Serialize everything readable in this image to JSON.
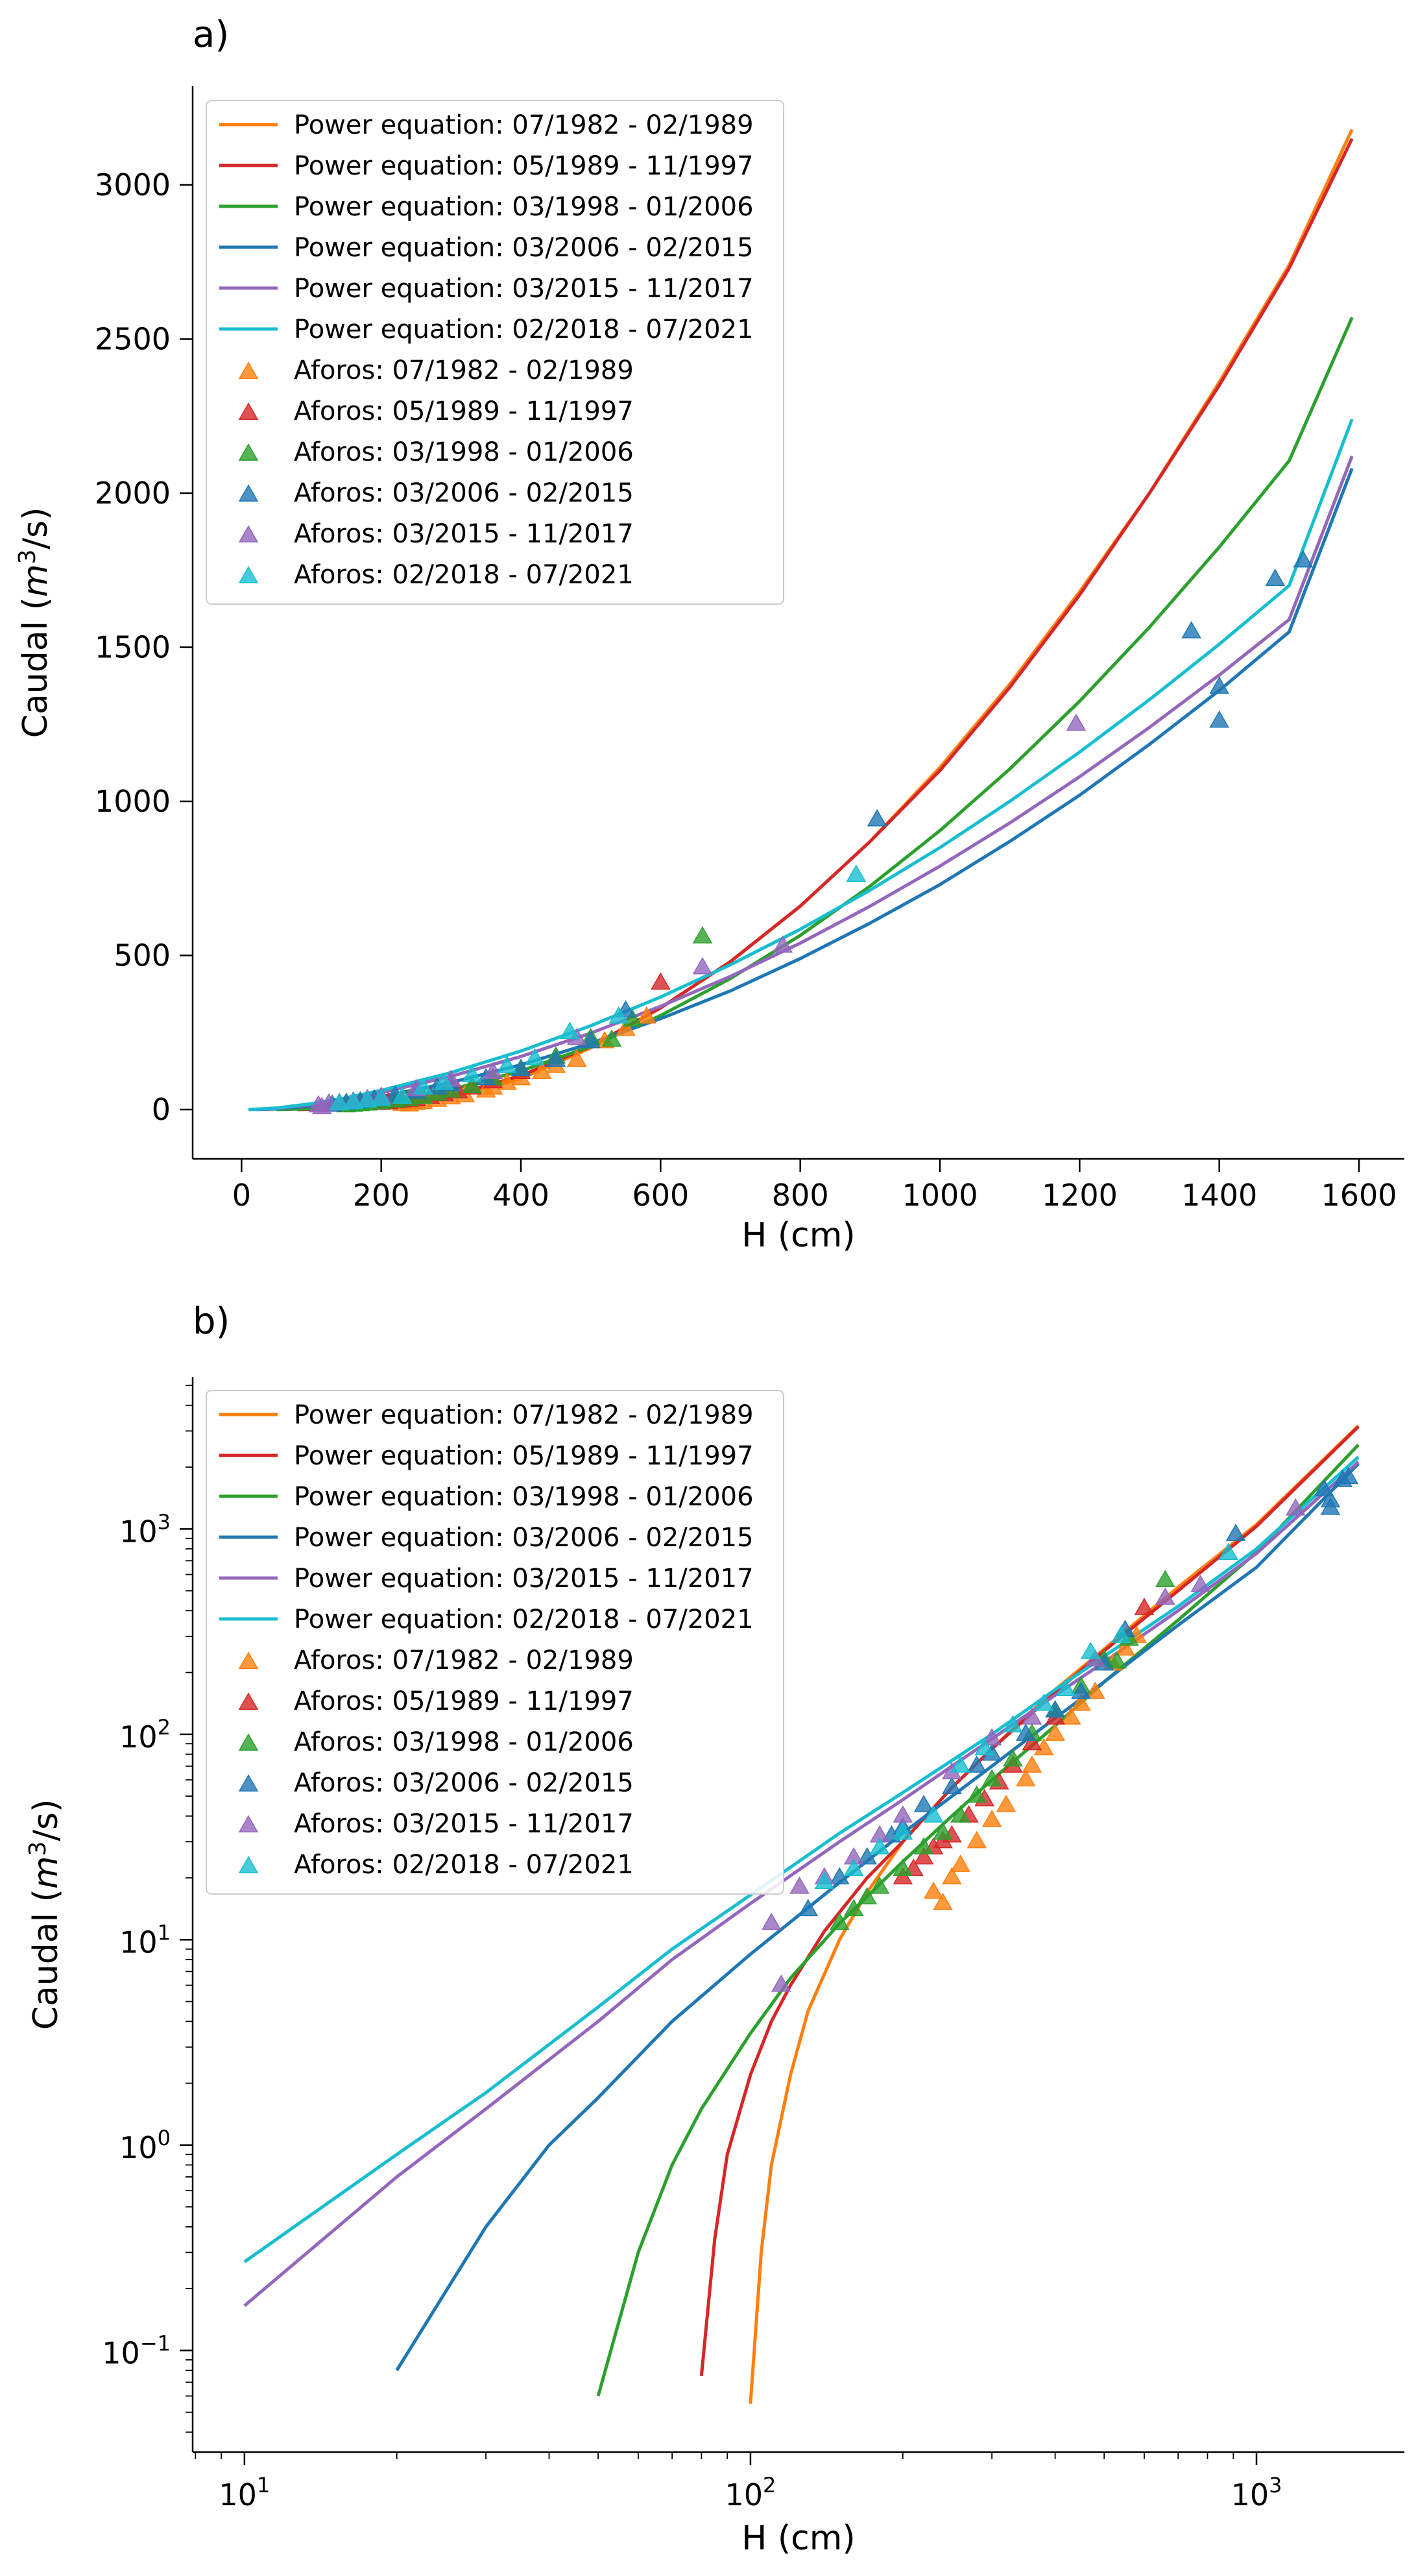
{
  "chart_data": [
    {
      "type": "line",
      "panel_label": "a)",
      "xlabel": "H (cm)",
      "ylabel": "Caudal (m3/s)",
      "ylabel_parts": {
        "base": "Caudal (",
        "var": "m",
        "sup": "3",
        "unit": "/s)"
      },
      "xscale": "linear",
      "yscale": "linear",
      "xlim": [
        -70,
        1665
      ],
      "ylim": [
        -160,
        3320
      ],
      "xticks": [
        0,
        200,
        400,
        600,
        800,
        1000,
        1200,
        1400,
        1600
      ],
      "xtick_labels": [
        "0",
        "200",
        "400",
        "600",
        "800",
        "1000",
        "1200",
        "1400",
        "1600"
      ],
      "yticks": [
        0,
        500,
        1000,
        1500,
        2000,
        2500,
        3000
      ],
      "ytick_labels": [
        "0",
        "500",
        "1000",
        "1500",
        "2000",
        "2500",
        "3000"
      ],
      "grid": false,
      "legend_position": "top-left",
      "series": [
        {
          "name": "Power equation: 07/1982 - 02/1989",
          "color": "#ff7f0e",
          "x": [
            100,
            150,
            200,
            250,
            300,
            400,
            500,
            600,
            700,
            800,
            900,
            1000,
            1100,
            1200,
            1300,
            1400,
            1500,
            1590
          ],
          "y": [
            0,
            2,
            8,
            20,
            40,
            100,
            200,
            330,
            480,
            660,
            870,
            1110,
            1380,
            1680,
            2000,
            2360,
            2740,
            3180
          ]
        },
        {
          "name": "Power equation: 05/1989 - 11/1997",
          "color": "#d62728",
          "x": [
            80,
            150,
            200,
            250,
            300,
            400,
            500,
            600,
            700,
            800,
            900,
            1000,
            1100,
            1200,
            1300,
            1400,
            1500,
            1590
          ],
          "y": [
            0,
            4,
            12,
            25,
            45,
            110,
            205,
            330,
            480,
            660,
            870,
            1100,
            1370,
            1670,
            2000,
            2350,
            2730,
            3150
          ]
        },
        {
          "name": "Power equation: 03/1998 - 01/2006",
          "color": "#2ca02c",
          "x": [
            50,
            100,
            150,
            200,
            300,
            400,
            500,
            600,
            700,
            800,
            900,
            1000,
            1100,
            1200,
            1300,
            1400,
            1500,
            1590
          ],
          "y": [
            0,
            3,
            12,
            25,
            65,
            125,
            205,
            305,
            425,
            565,
            725,
            905,
            1105,
            1325,
            1565,
            1825,
            2105,
            2570
          ]
        },
        {
          "name": "Power equation: 03/2006 - 02/2015",
          "color": "#1f77b4",
          "x": [
            20,
            50,
            100,
            150,
            200,
            300,
            400,
            500,
            600,
            700,
            800,
            900,
            1000,
            1100,
            1200,
            1300,
            1400,
            1500,
            1590
          ],
          "y": [
            0,
            2,
            11,
            25,
            42,
            88,
            145,
            215,
            295,
            385,
            490,
            605,
            730,
            870,
            1020,
            1185,
            1360,
            1550,
            2080
          ]
        },
        {
          "name": "Power equation: 03/2015 - 11/2017",
          "color": "#9467bd",
          "x": [
            10,
            50,
            100,
            150,
            200,
            300,
            400,
            500,
            600,
            700,
            800,
            900,
            1000,
            1100,
            1200,
            1300,
            1400,
            1500,
            1590
          ],
          "y": [
            0,
            4,
            16,
            33,
            55,
            108,
            172,
            248,
            335,
            432,
            540,
            660,
            790,
            930,
            1080,
            1240,
            1410,
            1590,
            2120
          ]
        },
        {
          "name": "Power equation: 02/2018 - 07/2021",
          "color": "#17becf",
          "x": [
            10,
            50,
            100,
            150,
            200,
            300,
            400,
            500,
            600,
            700,
            800,
            900,
            1000,
            1100,
            1200,
            1300,
            1400,
            1500,
            1590
          ],
          "y": [
            0,
            5,
            19,
            38,
            62,
            120,
            190,
            272,
            365,
            470,
            585,
            712,
            850,
            1000,
            1160,
            1330,
            1510,
            1700,
            2240
          ]
        }
      ],
      "scatter": [
        {
          "name": "Aforos: 07/1982 - 02/1989",
          "color": "#ff7f0e",
          "x": [
            230,
            240,
            250,
            260,
            280,
            300,
            320,
            350,
            360,
            380,
            400,
            430,
            450,
            480,
            520,
            550,
            580
          ],
          "y": [
            17,
            15,
            20,
            23,
            30,
            38,
            45,
            60,
            70,
            85,
            100,
            120,
            140,
            160,
            220,
            260,
            300
          ]
        },
        {
          "name": "Aforos: 05/1989 - 11/1997",
          "color": "#d62728",
          "x": [
            200,
            210,
            220,
            230,
            240,
            250,
            270,
            290,
            310,
            330,
            360,
            400,
            600
          ],
          "y": [
            20,
            22,
            25,
            28,
            30,
            32,
            40,
            48,
            58,
            70,
            90,
            120,
            410
          ]
        },
        {
          "name": "Aforos: 03/1998 - 01/2006",
          "color": "#2ca02c",
          "x": [
            150,
            160,
            170,
            180,
            200,
            220,
            240,
            260,
            280,
            300,
            330,
            360,
            400,
            450,
            500,
            530,
            560,
            660
          ],
          "y": [
            12,
            14,
            16,
            18,
            22,
            28,
            33,
            40,
            50,
            60,
            75,
            100,
            130,
            170,
            230,
            225,
            290,
            560
          ]
        },
        {
          "name": "Aforos: 03/2006 - 02/2015",
          "color": "#1f77b4",
          "x": [
            130,
            150,
            170,
            190,
            200,
            220,
            250,
            280,
            300,
            350,
            400,
            450,
            500,
            550,
            910,
            1360,
            1400,
            1400,
            1480,
            1520
          ],
          "y": [
            14,
            20,
            25,
            32,
            35,
            45,
            55,
            70,
            80,
            100,
            130,
            160,
            220,
            320,
            940,
            1550,
            1370,
            1260,
            1720,
            1780
          ]
        },
        {
          "name": "Aforos: 03/2015 - 11/2017",
          "color": "#9467bd",
          "x": [
            110,
            115,
            125,
            140,
            160,
            180,
            200,
            250,
            300,
            360,
            480,
            660,
            775,
            1195
          ],
          "y": [
            12,
            6,
            18,
            20,
            25,
            32,
            40,
            65,
            95,
            120,
            230,
            460,
            530,
            1250
          ]
        },
        {
          "name": "Aforos: 02/2018 - 07/2021",
          "color": "#17becf",
          "x": [
            140,
            160,
            180,
            200,
            230,
            260,
            290,
            330,
            380,
            420,
            470,
            540,
            880
          ],
          "y": [
            19,
            22,
            28,
            33,
            40,
            70,
            85,
            110,
            140,
            165,
            250,
            300,
            760
          ]
        }
      ]
    },
    {
      "type": "line",
      "panel_label": "b)",
      "xlabel": "H (cm)",
      "ylabel": "Caudal (m3/s)",
      "ylabel_parts": {
        "base": "Caudal (",
        "var": "m",
        "sup": "3",
        "unit": "/s)"
      },
      "xscale": "log",
      "yscale": "log",
      "xlim": [
        7.9,
        1960
      ],
      "ylim": [
        0.032,
        5500
      ],
      "xticks": [
        10,
        100,
        1000
      ],
      "xtick_labels": [
        {
          "base": "10",
          "exp": "1"
        },
        {
          "base": "10",
          "exp": "2"
        },
        {
          "base": "10",
          "exp": "3"
        }
      ],
      "yticks": [
        0.1,
        1,
        10,
        100,
        1000
      ],
      "ytick_labels": [
        {
          "base": "10",
          "exp": "−1"
        },
        {
          "base": "10",
          "exp": "0"
        },
        {
          "base": "10",
          "exp": "1"
        },
        {
          "base": "10",
          "exp": "2"
        },
        {
          "base": "10",
          "exp": "3"
        }
      ],
      "grid": false,
      "legend_position": "top-left",
      "series": [
        {
          "name": "Power equation: 07/1982 - 02/1989",
          "color": "#ff7f0e",
          "x": [
            100,
            105,
            110,
            120,
            130,
            150,
            170,
            200,
            250,
            300,
            400,
            500,
            700,
            1000,
            1590
          ],
          "y": [
            0.055,
            0.3,
            0.8,
            2.2,
            4.5,
            10,
            17,
            30,
            55,
            85,
            165,
            260,
            520,
            1050,
            3180
          ]
        },
        {
          "name": "Power equation: 05/1989 - 11/1997",
          "color": "#d62728",
          "x": [
            80,
            85,
            90,
            100,
            110,
            120,
            140,
            170,
            200,
            250,
            300,
            400,
            500,
            700,
            1000,
            1590
          ],
          "y": [
            0.075,
            0.35,
            0.9,
            2.2,
            4,
            6,
            11,
            20,
            30,
            55,
            85,
            160,
            255,
            500,
            1030,
            3150
          ]
        },
        {
          "name": "Power equation: 03/1998 - 01/2006",
          "color": "#2ca02c",
          "x": [
            50,
            60,
            70,
            80,
            100,
            120,
            150,
            200,
            250,
            300,
            400,
            500,
            700,
            1000,
            1590
          ],
          "y": [
            0.06,
            0.3,
            0.8,
            1.5,
            3.5,
            6.5,
            12,
            24,
            40,
            60,
            110,
            180,
            360,
            770,
            2570
          ]
        },
        {
          "name": "Power equation: 03/2006 - 02/2015",
          "color": "#1f77b4",
          "x": [
            20,
            30,
            40,
            50,
            70,
            100,
            150,
            200,
            300,
            400,
            500,
            700,
            1000,
            1590
          ],
          "y": [
            0.08,
            0.4,
            1,
            1.7,
            4,
            8.5,
            19,
            33,
            70,
            120,
            180,
            340,
            650,
            2080
          ]
        },
        {
          "name": "Power equation: 03/2015 - 11/2017",
          "color": "#9467bd",
          "x": [
            10,
            20,
            30,
            50,
            70,
            100,
            150,
            200,
            300,
            400,
            500,
            700,
            1000,
            1590
          ],
          "y": [
            0.165,
            0.7,
            1.5,
            4,
            8,
            15,
            30,
            48,
            95,
            155,
            225,
            400,
            760,
            2120
          ]
        },
        {
          "name": "Power equation: 02/2018 - 07/2021",
          "color": "#17becf",
          "x": [
            10,
            20,
            30,
            50,
            70,
            100,
            150,
            200,
            300,
            400,
            500,
            700,
            1000,
            1590
          ],
          "y": [
            0.27,
            0.9,
            1.8,
            4.7,
            9,
            16.5,
            33,
            52,
            100,
            165,
            240,
            420,
            800,
            2240
          ]
        }
      ],
      "scatter": [
        {
          "name": "Aforos: 07/1982 - 02/1989",
          "color": "#ff7f0e",
          "x": [
            230,
            240,
            250,
            260,
            280,
            300,
            320,
            350,
            360,
            380,
            400,
            430,
            450,
            480,
            520,
            550,
            580
          ],
          "y": [
            17,
            15,
            20,
            23,
            30,
            38,
            45,
            60,
            70,
            85,
            100,
            120,
            140,
            160,
            220,
            260,
            300
          ]
        },
        {
          "name": "Aforos: 05/1989 - 11/1997",
          "color": "#d62728",
          "x": [
            200,
            210,
            220,
            230,
            240,
            250,
            270,
            290,
            310,
            330,
            360,
            400,
            600
          ],
          "y": [
            20,
            22,
            25,
            28,
            30,
            32,
            40,
            48,
            58,
            70,
            90,
            120,
            410
          ]
        },
        {
          "name": "Aforos: 03/1998 - 01/2006",
          "color": "#2ca02c",
          "x": [
            150,
            160,
            170,
            180,
            200,
            220,
            240,
            260,
            280,
            300,
            330,
            360,
            400,
            450,
            500,
            530,
            560,
            660
          ],
          "y": [
            12,
            14,
            16,
            18,
            22,
            28,
            33,
            40,
            50,
            60,
            75,
            100,
            130,
            170,
            230,
            225,
            290,
            560
          ]
        },
        {
          "name": "Aforos: 03/2006 - 02/2015",
          "color": "#1f77b4",
          "x": [
            130,
            150,
            170,
            190,
            200,
            220,
            250,
            280,
            300,
            350,
            400,
            450,
            500,
            550,
            910,
            1360,
            1400,
            1400,
            1480,
            1520
          ],
          "y": [
            14,
            20,
            25,
            32,
            35,
            45,
            55,
            70,
            80,
            100,
            130,
            160,
            220,
            320,
            940,
            1550,
            1370,
            1260,
            1720,
            1780
          ]
        },
        {
          "name": "Aforos: 03/2015 - 11/2017",
          "color": "#9467bd",
          "x": [
            110,
            115,
            125,
            140,
            160,
            180,
            200,
            250,
            300,
            360,
            480,
            660,
            775,
            1195
          ],
          "y": [
            12,
            6,
            18,
            20,
            25,
            32,
            40,
            65,
            95,
            120,
            230,
            460,
            530,
            1250
          ]
        },
        {
          "name": "Aforos: 02/2018 - 07/2021",
          "color": "#17becf",
          "x": [
            140,
            160,
            180,
            200,
            230,
            260,
            290,
            330,
            380,
            420,
            470,
            540,
            880
          ],
          "y": [
            19,
            22,
            28,
            33,
            40,
            70,
            85,
            110,
            140,
            165,
            250,
            300,
            760
          ]
        }
      ]
    }
  ]
}
